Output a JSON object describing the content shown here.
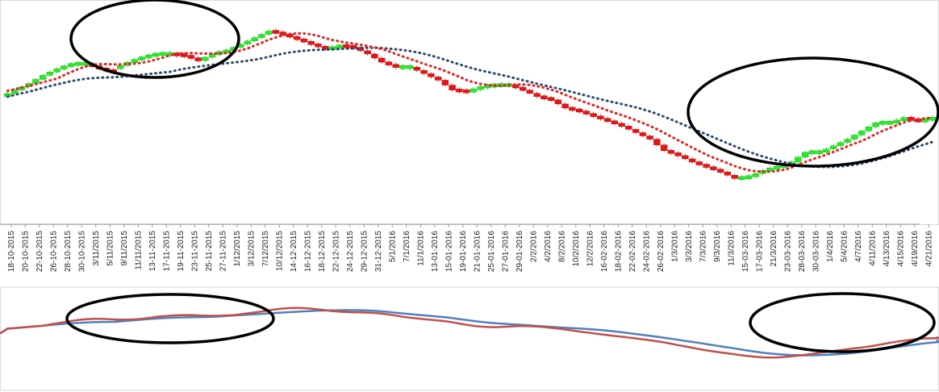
{
  "colors": {
    "up_candle": "#22ee22",
    "down_candle": "#ee1111",
    "fast_ma": "#e02424",
    "slow_ma": "#2e4a6e",
    "lower_blue": "#4f81bd",
    "lower_red": "#c0504d",
    "ellipse": "#000000",
    "frame": "#d9d9d9"
  },
  "chart_data": [
    {
      "type": "candlestick",
      "title": "",
      "xlabel": "",
      "ylabel": "",
      "y_axis_labels": "none",
      "grid": false,
      "legend": "none",
      "categories": [
        "18-10-2015",
        "20-10-2015",
        "22-10-2015",
        "26-10-2015",
        "28-10-2015",
        "30-10-2015",
        "3/11/2015",
        "5/11/2015",
        "9/11/2015",
        "11/11/2015",
        "13-11-2015",
        "17-11-2015",
        "19-11-2015",
        "23-11-2015",
        "25-11-2015",
        "27-11-2015",
        "1/12/2015",
        "3/12/2015",
        "7/12/2015",
        "10/12/2015",
        "14-12-2015",
        "16-12-2015",
        "18-12-2015",
        "22-12-2015",
        "24-12-2015",
        "29-12-2015",
        "31-12-2015",
        "5/1/2016",
        "7/1/2016",
        "11/1/2016",
        "13-01-2016",
        "15-01-2016",
        "19-01-2016",
        "21-01-2016",
        "25-01-2016",
        "27-01-2016",
        "29-01-2016",
        "2/2/2016",
        "4/2/2016",
        "8/2/2016",
        "10/2/2016",
        "12/2/2016",
        "16-02-2016",
        "18-02-2016",
        "22-02-2016",
        "24-02-2016",
        "26-02-2016",
        "1/3/2016",
        "3/3/2016",
        "7/3/2016",
        "9/3/2016",
        "11/3/2016",
        "15-03-2016",
        "17-03-2016",
        "21/3/2016",
        "23-03-2016",
        "28-03-2016",
        "30-03-2016",
        "1/4/2016",
        "5/4/2016",
        "4/7/2016",
        "4/11/2016",
        "4/13/2016",
        "4/15/2016",
        "4/19/2016",
        "4/21/2016"
      ],
      "candles": [
        [
          10,
          14
        ],
        [
          14,
          18
        ],
        [
          18,
          23
        ],
        [
          23,
          27
        ],
        [
          27,
          30
        ],
        [
          30,
          30
        ],
        [
          30,
          27
        ],
        [
          27,
          25
        ],
        [
          27,
          31
        ],
        [
          31,
          34
        ],
        [
          34,
          36
        ],
        [
          36,
          36
        ],
        [
          36,
          35
        ],
        [
          35,
          32
        ],
        [
          32,
          36
        ],
        [
          36,
          38
        ],
        [
          38,
          42
        ],
        [
          42,
          46
        ],
        [
          46,
          50
        ],
        [
          50,
          48
        ],
        [
          48,
          45
        ],
        [
          45,
          42
        ],
        [
          42,
          39
        ],
        [
          39,
          41
        ],
        [
          41,
          40
        ],
        [
          40,
          36
        ],
        [
          36,
          31
        ],
        [
          31,
          28
        ],
        [
          28,
          28
        ],
        [
          28,
          24
        ],
        [
          24,
          20
        ],
        [
          20,
          14
        ],
        [
          14,
          13
        ],
        [
          13,
          16
        ],
        [
          16,
          17
        ],
        [
          17,
          17
        ],
        [
          17,
          14
        ],
        [
          14,
          10
        ],
        [
          10,
          8
        ],
        [
          8,
          3
        ],
        [
          3,
          1
        ],
        [
          1,
          -2
        ],
        [
          -2,
          -5
        ],
        [
          -5,
          -8
        ],
        [
          -8,
          -12
        ],
        [
          -12,
          -16
        ],
        [
          -16,
          -23
        ],
        [
          -23,
          -26
        ],
        [
          -26,
          -30
        ],
        [
          -30,
          -33
        ],
        [
          -33,
          -36
        ],
        [
          -36,
          -40
        ],
        [
          -40,
          -39
        ],
        [
          -39,
          -35
        ],
        [
          -35,
          -33
        ],
        [
          -33,
          -30
        ],
        [
          -30,
          -24
        ],
        [
          -24,
          -24
        ],
        [
          -24,
          -20
        ],
        [
          -20,
          -16
        ],
        [
          -16,
          -11
        ],
        [
          -11,
          -6
        ],
        [
          -6,
          -6
        ],
        [
          -6,
          -3
        ],
        [
          -3,
          -5
        ],
        [
          -5,
          -3
        ]
      ],
      "fast_ma": [],
      "slow_ma": []
    },
    {
      "type": "line",
      "title": "",
      "xlabel": "",
      "ylabel": "",
      "grid": false,
      "legend": "none",
      "series": [
        {
          "values": []
        },
        {
          "values": []
        }
      ]
    }
  ]
}
